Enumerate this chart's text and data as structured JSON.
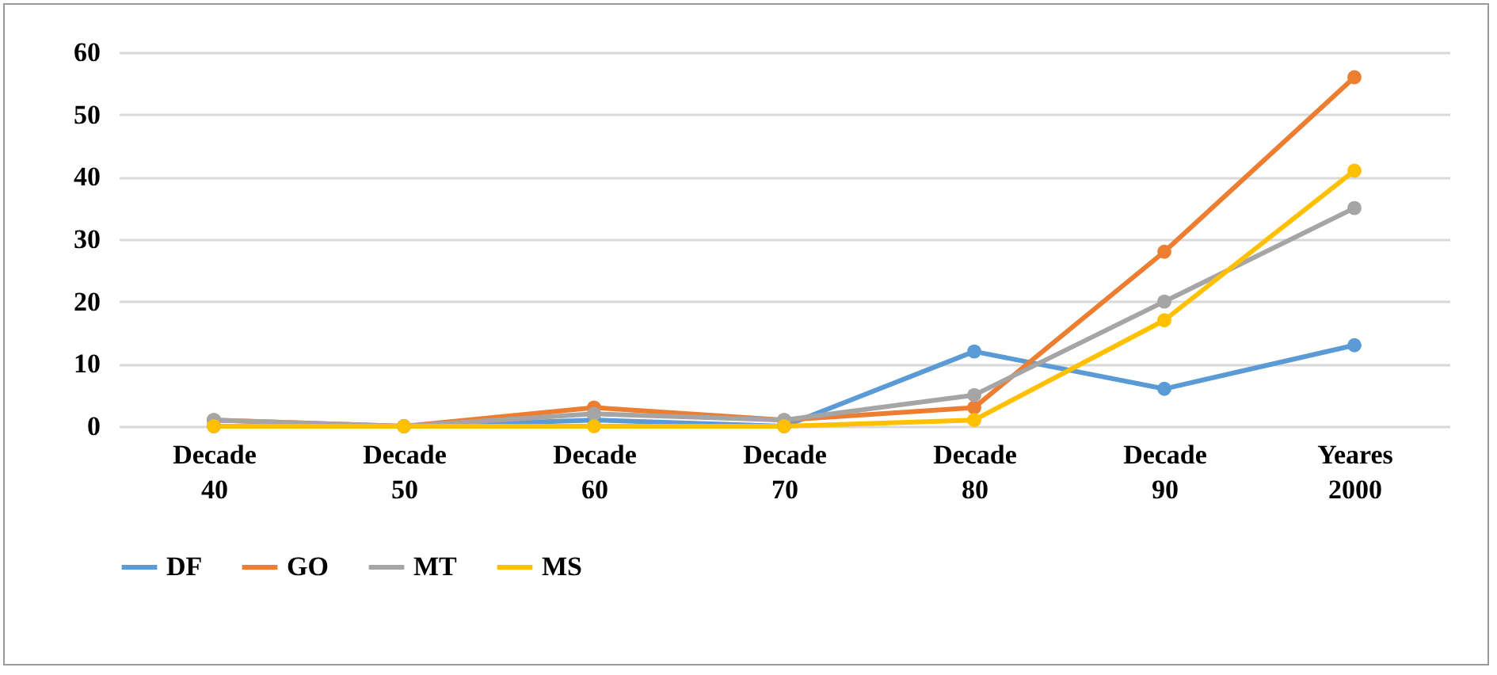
{
  "chart_data": {
    "type": "line",
    "categories": [
      "Decade 40",
      "Decade 50",
      "Decade 60",
      "Decade 70",
      "Decade 80",
      "Decade 90",
      "Yeares 2000"
    ],
    "series": [
      {
        "name": "DF",
        "color": "#5b9bd5",
        "values": [
          0,
          0,
          1,
          0,
          12,
          6,
          13
        ]
      },
      {
        "name": "GO",
        "color": "#ed7d31",
        "values": [
          1,
          0,
          3,
          1,
          3,
          28,
          56
        ]
      },
      {
        "name": "MT",
        "color": "#a5a5a5",
        "values": [
          1,
          0,
          2,
          1,
          5,
          20,
          35
        ]
      },
      {
        "name": "MS",
        "color": "#ffc000",
        "values": [
          0,
          0,
          0,
          0,
          1,
          17,
          41
        ]
      }
    ],
    "ylim": [
      0,
      60
    ],
    "yticks": [
      0,
      10,
      20,
      30,
      40,
      50,
      60
    ],
    "grid": "y",
    "legend": "bottom",
    "marker": "circle",
    "line_style": "solid"
  }
}
